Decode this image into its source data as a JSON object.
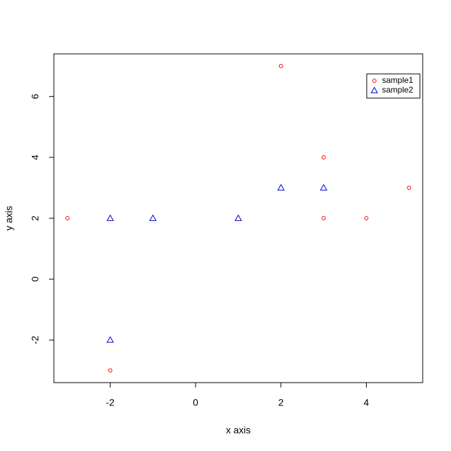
{
  "chart_data": {
    "type": "scatter",
    "x_label": "x axis",
    "y_label": "y axis",
    "xlim": [
      -3.32,
      5.32
    ],
    "ylim": [
      -3.4,
      7.4
    ],
    "xticks": [
      -2,
      0,
      2,
      4
    ],
    "yticks": [
      -2,
      0,
      2,
      4,
      6
    ],
    "legend": "topright",
    "series": [
      {
        "name": "sample1",
        "color": "#ff0000",
        "marker": "circle",
        "x": [
          -3,
          -2,
          2,
          3,
          3,
          4,
          5
        ],
        "values": [
          2,
          -3,
          7,
          4,
          2,
          2,
          3
        ]
      },
      {
        "name": "sample2",
        "color": "#0000cd",
        "marker": "triangle",
        "x": [
          -2,
          -2,
          -1,
          1,
          2,
          3
        ],
        "values": [
          2,
          -2,
          2,
          2,
          3,
          3
        ]
      }
    ]
  }
}
